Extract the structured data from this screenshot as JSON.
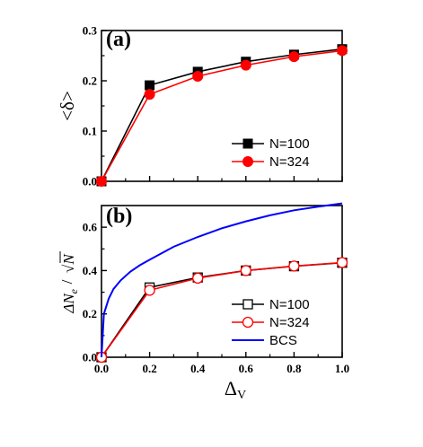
{
  "chart_data": [
    {
      "panel": "(a)",
      "type": "line",
      "ylabel": "<δ>",
      "xlim": [
        0,
        1.0
      ],
      "ylim": [
        0,
        0.3
      ],
      "yticks": [
        "0.0",
        "0.1",
        "0.2",
        "0.3"
      ],
      "legend_position": "bottom-right",
      "series": [
        {
          "name": "N=100",
          "color": "#000000",
          "marker": "filled-square",
          "x": [
            0,
            0.2,
            0.4,
            0.6,
            0.8,
            1.0
          ],
          "y": [
            0.0,
            0.191,
            0.218,
            0.238,
            0.252,
            0.263
          ]
        },
        {
          "name": "N=324",
          "color": "#ff0000",
          "marker": "filled-circle",
          "x": [
            0,
            0.2,
            0.4,
            0.6,
            0.8,
            1.0
          ],
          "y": [
            0.0,
            0.173,
            0.209,
            0.231,
            0.248,
            0.26
          ]
        }
      ]
    },
    {
      "panel": "(b)",
      "type": "line",
      "ylabel_numerator": "ΔN",
      "ylabel_subscript": "e",
      "ylabel_denominator": "N",
      "xlabel": "Δ",
      "xlabel_subscript": "V",
      "xlim": [
        0,
        1.0
      ],
      "ylim": [
        0,
        0.7
      ],
      "xticks": [
        "0.0",
        "0.2",
        "0.4",
        "0.6",
        "0.8",
        "1.0"
      ],
      "yticks": [
        "0.0",
        "0.2",
        "0.4",
        "0.6"
      ],
      "legend_position": "bottom-right",
      "series": [
        {
          "name": "N=100",
          "color": "#000000",
          "marker": "open-square",
          "x": [
            0,
            0.2,
            0.4,
            0.6,
            0.8,
            1.0
          ],
          "y": [
            0.0,
            0.322,
            0.368,
            0.4,
            0.42,
            0.436
          ]
        },
        {
          "name": "N=324",
          "color": "#ff0000",
          "marker": "open-circle",
          "x": [
            0,
            0.2,
            0.4,
            0.6,
            0.8,
            1.0
          ],
          "y": [
            0.0,
            0.309,
            0.365,
            0.4,
            0.421,
            0.437
          ]
        },
        {
          "name": "BCS",
          "color": "#0000ff",
          "marker": "none",
          "x": [
            0.0,
            0.01,
            0.03,
            0.05,
            0.08,
            0.12,
            0.16,
            0.2,
            0.3,
            0.4,
            0.5,
            0.6,
            0.7,
            0.8,
            0.9,
            1.0
          ],
          "y": [
            0.0,
            0.2,
            0.27,
            0.315,
            0.355,
            0.395,
            0.425,
            0.45,
            0.51,
            0.555,
            0.595,
            0.627,
            0.655,
            0.678,
            0.695,
            0.71
          ]
        }
      ]
    }
  ]
}
